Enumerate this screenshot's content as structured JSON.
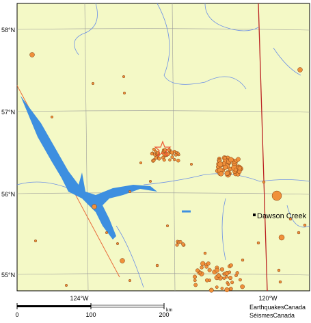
{
  "map": {
    "lat_labels": [
      "58°N",
      "57°N",
      "56°N",
      "55°N"
    ],
    "lon_labels": [
      "124°W",
      "120°W"
    ],
    "city": "Dawson Creek",
    "scale": {
      "ticks": [
        "0",
        "100",
        "200"
      ],
      "unit": "km"
    },
    "credit": [
      "EarthquakesCanada",
      "SéismesCanada"
    ]
  }
}
